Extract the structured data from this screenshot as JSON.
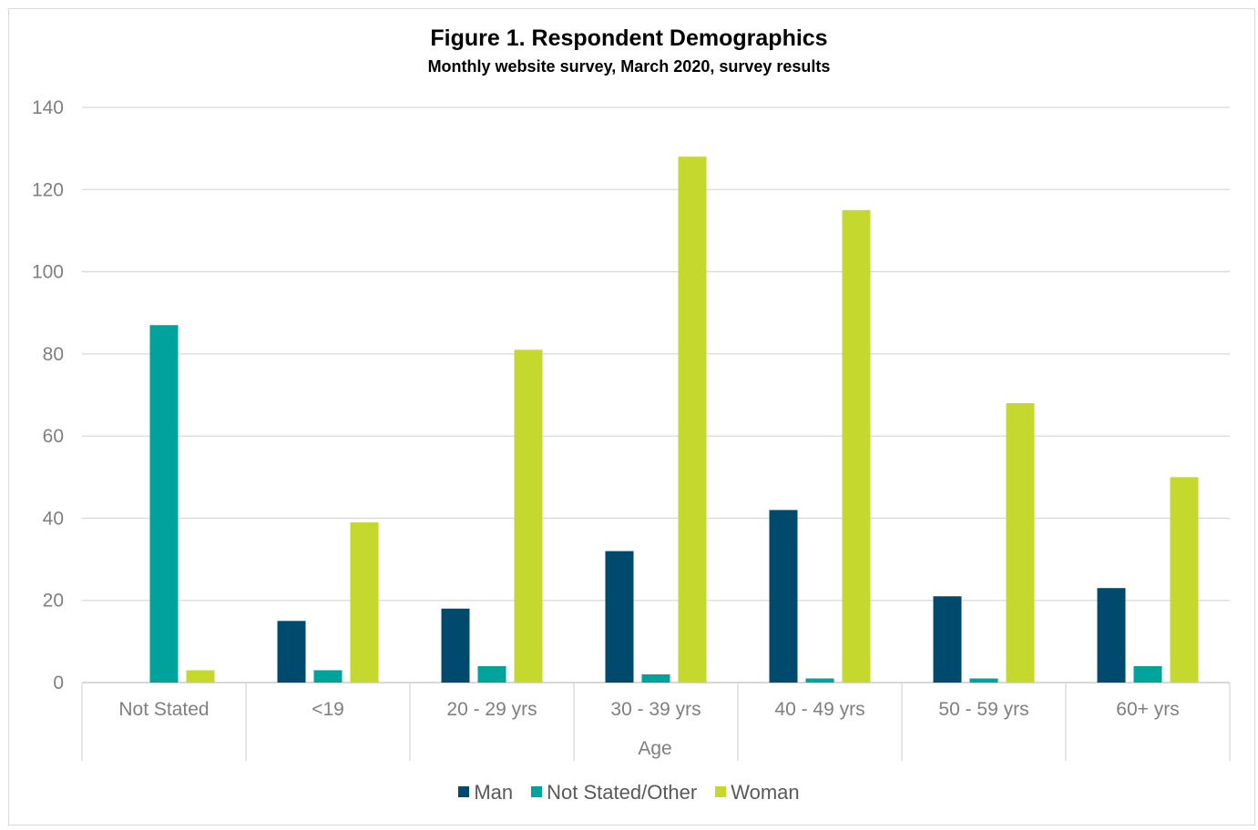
{
  "chart_data": {
    "type": "bar",
    "title": "Figure 1. Respondent Demographics",
    "subtitle": "Monthly website survey, March 2020, survey results",
    "xlabel": "Age",
    "ylabel": "",
    "ylim": [
      0,
      140
    ],
    "yticks": [
      0,
      20,
      40,
      60,
      80,
      100,
      120,
      140
    ],
    "grid": true,
    "legend_position": "bottom",
    "categories": [
      "Not Stated",
      "<19",
      "20 - 29 yrs",
      "30 - 39 yrs",
      "40 - 49 yrs",
      "50 - 59 yrs",
      "60+ yrs"
    ],
    "series": [
      {
        "name": "Man",
        "color": "#004a6e",
        "values": [
          0,
          15,
          18,
          32,
          42,
          21,
          23
        ]
      },
      {
        "name": "Not Stated/Other",
        "color": "#00a39b",
        "values": [
          87,
          3,
          4,
          2,
          1,
          1,
          4
        ]
      },
      {
        "name": "Woman",
        "color": "#c5d82e",
        "values": [
          3,
          39,
          81,
          128,
          115,
          68,
          50
        ]
      }
    ]
  }
}
